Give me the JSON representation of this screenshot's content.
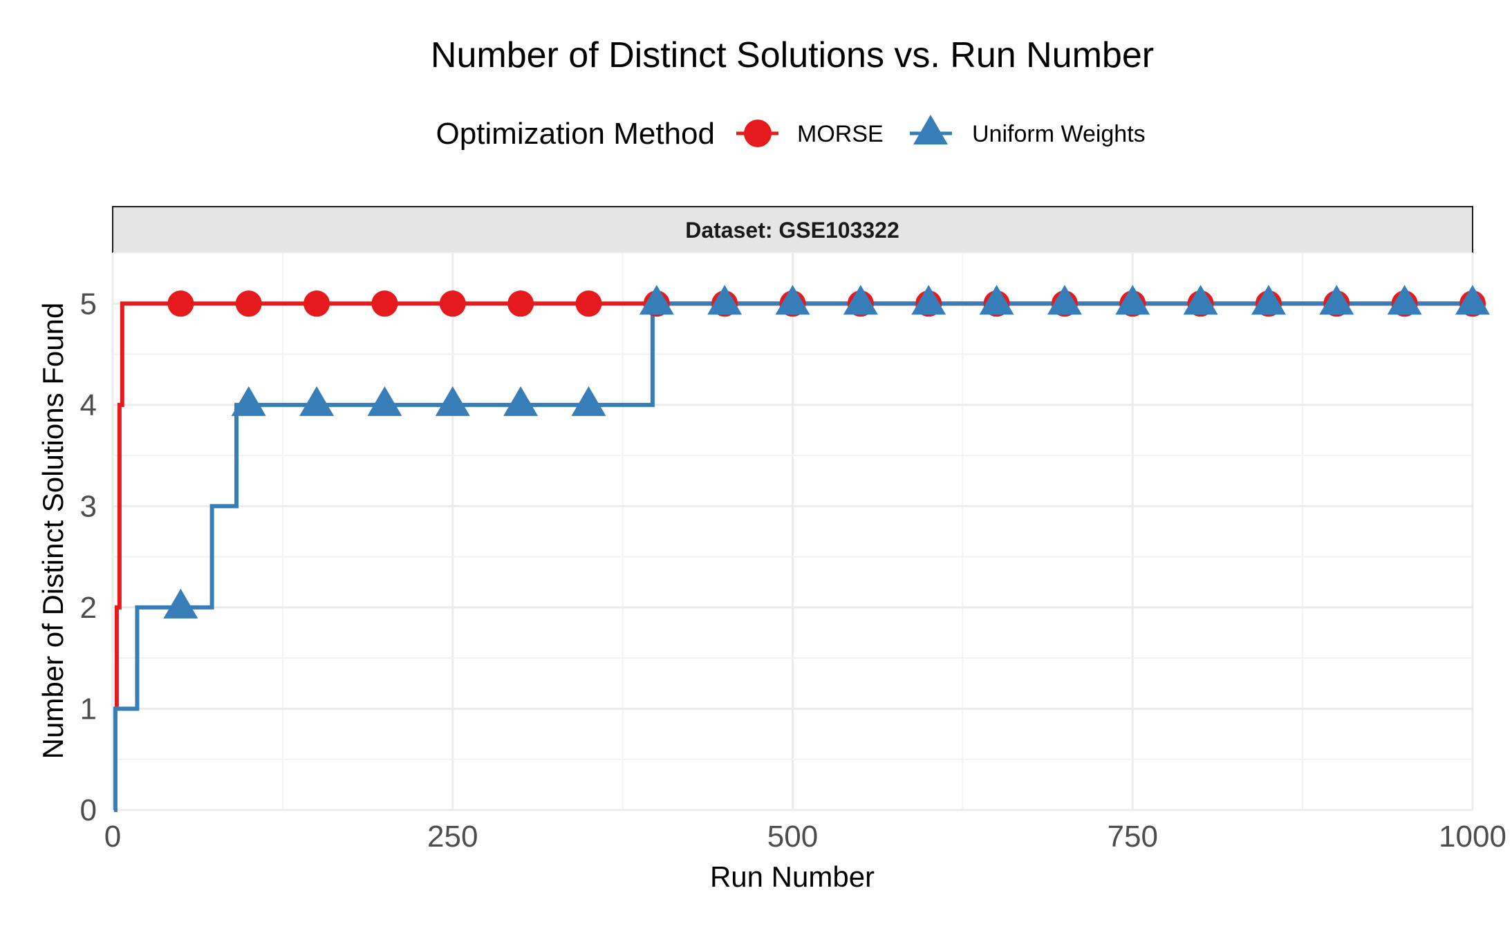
{
  "chart_data": {
    "type": "line",
    "title": "Number of Distinct Solutions vs. Run Number",
    "xlabel": "Run Number",
    "ylabel": "Number of Distinct Solutions Found",
    "facet_label": "Dataset: GSE103322",
    "legend": {
      "title": "Optimization Method",
      "position": "top"
    },
    "xlim": [
      0,
      1000
    ],
    "ylim": [
      0,
      5.5
    ],
    "x_ticks": [
      0,
      250,
      500,
      750,
      1000
    ],
    "x_tick_labels": [
      "0",
      "250",
      "500",
      "750",
      "1000"
    ],
    "y_ticks": [
      0,
      1,
      2,
      3,
      4,
      5
    ],
    "y_tick_labels": [
      "0",
      "1",
      "2",
      "3",
      "4",
      "5"
    ],
    "grid": true,
    "series": [
      {
        "name": "MORSE",
        "color": "#e41a1c",
        "marker": "circle",
        "steps": [
          [
            1,
            1
          ],
          [
            3,
            2
          ],
          [
            5,
            4
          ],
          [
            7,
            5
          ],
          [
            1000,
            5
          ]
        ],
        "marker_x": [
          50,
          100,
          150,
          200,
          250,
          300,
          350,
          400,
          450,
          500,
          550,
          600,
          650,
          700,
          750,
          800,
          850,
          900,
          950,
          1000
        ],
        "marker_y": [
          5,
          5,
          5,
          5,
          5,
          5,
          5,
          5,
          5,
          5,
          5,
          5,
          5,
          5,
          5,
          5,
          5,
          5,
          5,
          5
        ]
      },
      {
        "name": "Uniform Weights",
        "color": "#377eb8",
        "marker": "triangle",
        "steps": [
          [
            1,
            0
          ],
          [
            2,
            1
          ],
          [
            18,
            2
          ],
          [
            73,
            3
          ],
          [
            91,
            4
          ],
          [
            397,
            5
          ],
          [
            1000,
            5
          ]
        ],
        "marker_x": [
          50,
          100,
          150,
          200,
          250,
          300,
          350,
          400,
          450,
          500,
          550,
          600,
          650,
          700,
          750,
          800,
          850,
          900,
          950,
          1000
        ],
        "marker_y": [
          2,
          4,
          4,
          4,
          4,
          4,
          4,
          5,
          5,
          5,
          5,
          5,
          5,
          5,
          5,
          5,
          5,
          5,
          5,
          5
        ]
      }
    ]
  }
}
